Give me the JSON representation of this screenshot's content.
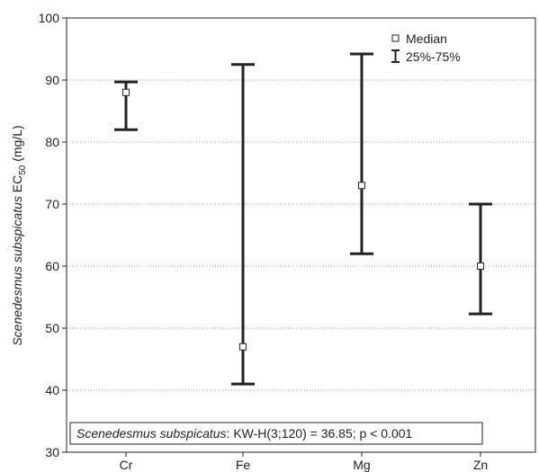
{
  "chart_data": {
    "type": "box",
    "categories": [
      "Cr",
      "Fe",
      "Mg",
      "Zn"
    ],
    "median": [
      88,
      47,
      73,
      60
    ],
    "q25": [
      82,
      41,
      62,
      52.3
    ],
    "q75": [
      89.7,
      92.5,
      94.2,
      70
    ],
    "ylim": [
      30,
      100
    ],
    "yticks": [
      30,
      40,
      50,
      60,
      70,
      80,
      90,
      100
    ],
    "ylabel": {
      "species": "Scenedesmus subspicatus",
      "metric": "EC",
      "subscript": "50",
      "unit": "(mg/L)"
    },
    "legend": {
      "position": "top-right",
      "median_label": "Median",
      "range_label": "25%-75%"
    },
    "annotation": {
      "species": "Scenedesmus subspicatus",
      "text": ":  KW-H(3;120) = 36.85; p < 0.001"
    },
    "grid": true
  }
}
